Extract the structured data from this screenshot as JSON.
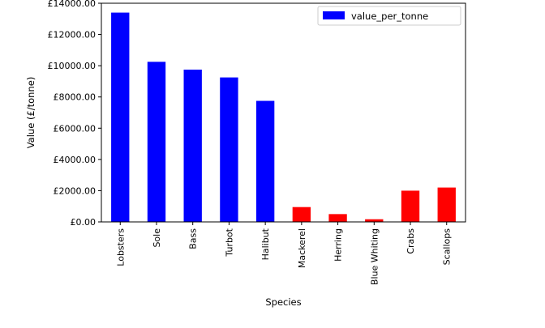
{
  "chart_data": {
    "type": "bar",
    "categories": [
      "Lobsters",
      "Sole",
      "Bass",
      "Turbot",
      "Halibut",
      "Mackerel",
      "Herring",
      "Blue Whiting",
      "Crabs",
      "Scallops"
    ],
    "series": [
      {
        "name": "value_per_tonne",
        "values": [
          13400,
          10250,
          9750,
          9250,
          7750,
          950,
          500,
          170,
          2000,
          2200
        ],
        "colors": [
          "#0000ff",
          "#0000ff",
          "#0000ff",
          "#0000ff",
          "#0000ff",
          "#ff0000",
          "#ff0000",
          "#ff0000",
          "#ff0000",
          "#ff0000"
        ]
      }
    ],
    "xlabel": "Species",
    "ylabel": "Value (£/tonne)",
    "ylim": [
      0,
      14000
    ],
    "yticks": [
      0,
      2000,
      4000,
      6000,
      8000,
      10000,
      12000,
      14000
    ],
    "ytick_labels": [
      "£0.00",
      "£2000.00",
      "£4000.00",
      "£6000.00",
      "£8000.00",
      "£10000.00",
      "£12000.00",
      "£14000.00"
    ],
    "grid": false,
    "legend": {
      "position": "top-right",
      "entries": [
        {
          "label": "value_per_tonne",
          "color": "#0000ff"
        }
      ]
    }
  }
}
